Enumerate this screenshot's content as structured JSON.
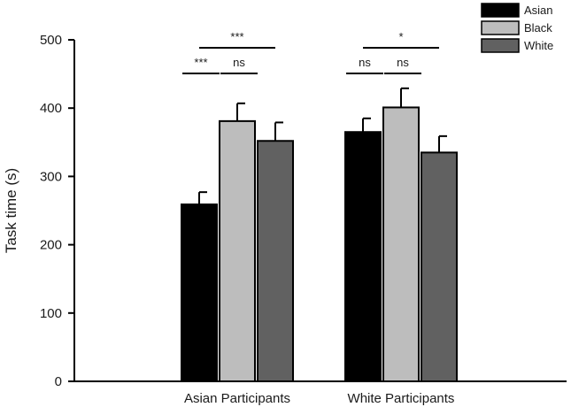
{
  "chart_data": {
    "type": "bar",
    "title": "",
    "xlabel": "",
    "ylabel": "Task time (s)",
    "ylim": [
      0,
      500
    ],
    "yticks": [
      "0",
      "100",
      "200",
      "300",
      "400",
      "500"
    ],
    "categories": [
      "Asian Participants",
      "White Participants"
    ],
    "series": [
      {
        "name": "Asian",
        "color": "#000000",
        "values": [
          259,
          365
        ],
        "errors": [
          18,
          20
        ]
      },
      {
        "name": "Black",
        "color": "#bdbdbd",
        "values": [
          381,
          401
        ],
        "errors": [
          26,
          28
        ]
      },
      {
        "name": "White",
        "color": "#616161",
        "values": [
          352,
          335
        ],
        "errors": [
          27,
          24
        ]
      }
    ],
    "legend": {
      "position": "top-right"
    },
    "grid": false,
    "annotations": [
      {
        "category": 0,
        "from": 0,
        "to": 2,
        "label": "***",
        "level": 2
      },
      {
        "category": 0,
        "from": 0,
        "to": 1,
        "label": "***",
        "level": 1
      },
      {
        "category": 0,
        "from": 1,
        "to": 2,
        "label": "ns",
        "level": 1
      },
      {
        "category": 1,
        "from": 0,
        "to": 2,
        "label": "*",
        "level": 2
      },
      {
        "category": 1,
        "from": 0,
        "to": 1,
        "label": "ns",
        "level": 1
      },
      {
        "category": 1,
        "from": 1,
        "to": 2,
        "label": "ns",
        "level": 1
      }
    ]
  }
}
